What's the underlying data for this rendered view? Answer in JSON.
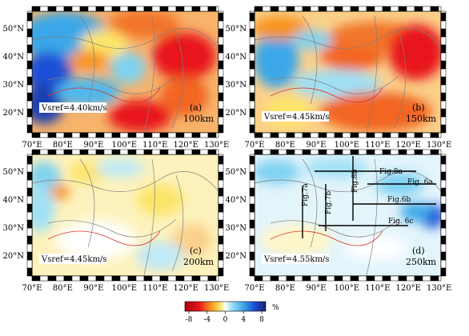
{
  "colors": {
    "red": "#e8171e",
    "orange": "#f7941d",
    "yellow": "#fef0a0",
    "white": "#ffffff",
    "cyan": "#7fd1f2",
    "blue": "#1b4fd6",
    "darkblue": "#1c1f7a",
    "boundary": "#7f7f7f",
    "fault": "#d9342b"
  },
  "axes": {
    "lon_labels": [
      "70°E",
      "80°E",
      "90°E",
      "100°E",
      "110°E",
      "120°E",
      "130°E"
    ],
    "lat_labels": [
      "20°N",
      "30°N",
      "40°N",
      "50°N"
    ]
  },
  "panels": [
    {
      "label": "(a)",
      "depth": "100km",
      "vsref": "Vsref=4.40km/s"
    },
    {
      "label": "(b)",
      "depth": "150km",
      "vsref": "Vsref=4.45km/s"
    },
    {
      "label": "(c)",
      "depth": "200km",
      "vsref": "Vsref=4.45km/s"
    },
    {
      "label": "(d)",
      "depth": "250km",
      "vsref": "Vsref=4.55km/s"
    }
  ],
  "profiles": [
    {
      "label": "Fig.8a"
    },
    {
      "label": "Fig.8b"
    },
    {
      "label": "Fig. 6a"
    },
    {
      "label": "Fig.6b"
    },
    {
      "label": "Fig.7b"
    },
    {
      "label": "Fig.7a"
    },
    {
      "label": "Fig. 6c"
    }
  ],
  "colorbar": {
    "unit": "%",
    "ticks": [
      "-8",
      "-4",
      "0",
      "4",
      "8"
    ]
  }
}
